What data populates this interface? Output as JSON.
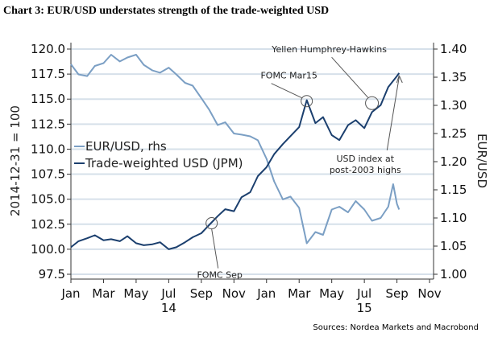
{
  "chart_data": {
    "type": "line",
    "title": "Chart 3: EUR/USD understates strength of the trade-weighted USD",
    "source": "Sources: Nordea Markets and Macrobond",
    "ylabel_left": "2014-12-31 = 100",
    "ylabel_right": "EUR/USD",
    "ylim_left": [
      97.5,
      120.0
    ],
    "ylim_right": [
      1.0,
      1.4
    ],
    "yticks_left": [
      "120.0",
      "117.5",
      "115.0",
      "112.5",
      "110.0",
      "107.5",
      "105.0",
      "102.5",
      "100.0",
      "97.5"
    ],
    "yticks_right": [
      "1.40",
      "1.35",
      "1.30",
      "1.25",
      "1.20",
      "1.15",
      "1.10",
      "1.05",
      "1.00"
    ],
    "xticks": [
      "Jan",
      "Mar",
      "May",
      "Jul",
      "Sep",
      "Nov",
      "Jan",
      "Mar",
      "May",
      "Jul",
      "Sep",
      "Nov"
    ],
    "year_labels": [
      "14",
      "15"
    ],
    "grid": true,
    "legend_position": "left-middle",
    "colors": {
      "eurusd": "#7b9fc4",
      "twusd": "#1b3f6e",
      "grid": "#d6e0ea"
    },
    "series": [
      {
        "name": "EUR/USD, rhs",
        "axis": "right",
        "points": [
          [
            "2014-01-01",
            1.373
          ],
          [
            "2014-01-15",
            1.355
          ],
          [
            "2014-02-01",
            1.352
          ],
          [
            "2014-02-15",
            1.37
          ],
          [
            "2014-03-01",
            1.375
          ],
          [
            "2014-03-15",
            1.39
          ],
          [
            "2014-04-01",
            1.378
          ],
          [
            "2014-04-15",
            1.385
          ],
          [
            "2014-05-01",
            1.39
          ],
          [
            "2014-05-15",
            1.372
          ],
          [
            "2014-06-01",
            1.362
          ],
          [
            "2014-06-15",
            1.358
          ],
          [
            "2014-07-01",
            1.367
          ],
          [
            "2014-07-15",
            1.355
          ],
          [
            "2014-08-01",
            1.34
          ],
          [
            "2014-08-15",
            1.335
          ],
          [
            "2014-09-01",
            1.313
          ],
          [
            "2014-09-15",
            1.293
          ],
          [
            "2014-10-01",
            1.265
          ],
          [
            "2014-10-15",
            1.27
          ],
          [
            "2014-11-01",
            1.25
          ],
          [
            "2014-11-15",
            1.248
          ],
          [
            "2014-12-01",
            1.245
          ],
          [
            "2014-12-15",
            1.238
          ],
          [
            "2015-01-01",
            1.205
          ],
          [
            "2015-01-15",
            1.165
          ],
          [
            "2015-02-01",
            1.133
          ],
          [
            "2015-02-15",
            1.138
          ],
          [
            "2015-03-01",
            1.118
          ],
          [
            "2015-03-15",
            1.055
          ],
          [
            "2015-04-01",
            1.075
          ],
          [
            "2015-04-15",
            1.07
          ],
          [
            "2015-05-01",
            1.115
          ],
          [
            "2015-05-15",
            1.12
          ],
          [
            "2015-06-01",
            1.11
          ],
          [
            "2015-06-15",
            1.13
          ],
          [
            "2015-07-01",
            1.115
          ],
          [
            "2015-07-15",
            1.095
          ],
          [
            "2015-08-01",
            1.1
          ],
          [
            "2015-08-15",
            1.12
          ],
          [
            "2015-08-24",
            1.16
          ],
          [
            "2015-09-01",
            1.125
          ],
          [
            "2015-09-05",
            1.115
          ]
        ]
      },
      {
        "name": "Trade-weighted USD (JPM)",
        "axis": "left",
        "points": [
          [
            "2014-01-01",
            100.2
          ],
          [
            "2014-01-15",
            100.8
          ],
          [
            "2014-02-01",
            101.1
          ],
          [
            "2014-02-15",
            101.4
          ],
          [
            "2014-03-01",
            100.9
          ],
          [
            "2014-03-15",
            101.0
          ],
          [
            "2014-04-01",
            100.8
          ],
          [
            "2014-04-15",
            101.3
          ],
          [
            "2014-05-01",
            100.6
          ],
          [
            "2014-05-15",
            100.4
          ],
          [
            "2014-06-01",
            100.5
          ],
          [
            "2014-06-15",
            100.7
          ],
          [
            "2014-07-01",
            100.0
          ],
          [
            "2014-07-15",
            100.2
          ],
          [
            "2014-08-01",
            100.7
          ],
          [
            "2014-08-15",
            101.2
          ],
          [
            "2014-09-01",
            101.6
          ],
          [
            "2014-09-15",
            102.4
          ],
          [
            "2014-10-01",
            103.3
          ],
          [
            "2014-10-15",
            104.0
          ],
          [
            "2014-11-01",
            103.8
          ],
          [
            "2014-11-15",
            105.2
          ],
          [
            "2014-12-01",
            105.7
          ],
          [
            "2014-12-15",
            107.3
          ],
          [
            "2015-01-01",
            108.2
          ],
          [
            "2015-01-15",
            109.5
          ],
          [
            "2015-02-01",
            110.5
          ],
          [
            "2015-02-15",
            111.3
          ],
          [
            "2015-03-01",
            112.2
          ],
          [
            "2015-03-15",
            114.9
          ],
          [
            "2015-04-01",
            112.6
          ],
          [
            "2015-04-15",
            113.2
          ],
          [
            "2015-05-01",
            111.4
          ],
          [
            "2015-05-15",
            110.9
          ],
          [
            "2015-06-01",
            112.4
          ],
          [
            "2015-06-15",
            112.9
          ],
          [
            "2015-07-01",
            112.1
          ],
          [
            "2015-07-15",
            113.7
          ],
          [
            "2015-08-01",
            114.4
          ],
          [
            "2015-08-15",
            116.2
          ],
          [
            "2015-09-01",
            117.3
          ],
          [
            "2015-09-05",
            117.6
          ]
        ]
      }
    ],
    "annotations": [
      {
        "text": "FOMC Sep",
        "date": "2014-09-20",
        "value": 102.6
      },
      {
        "text": "FOMC Mar15",
        "date": "2015-03-15",
        "value": 114.8
      },
      {
        "text": "Yellen Humphrey-Hawkins",
        "date": "2015-07-15",
        "value": 114.6
      },
      {
        "text": "USD index at post-2003 highs",
        "date": "2015-09-05",
        "value": 117.6
      }
    ]
  }
}
